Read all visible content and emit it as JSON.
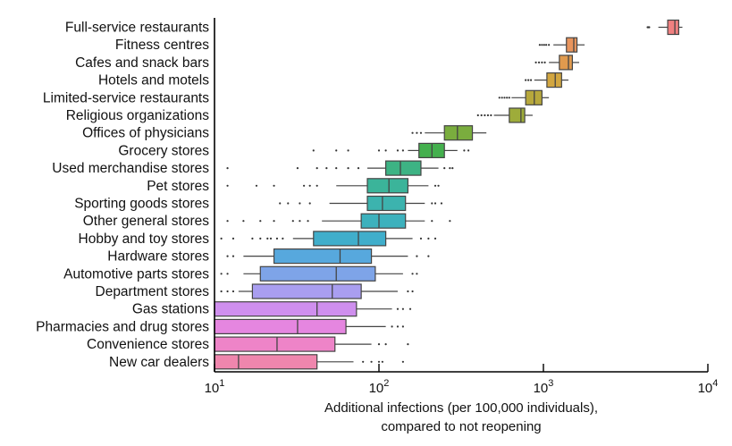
{
  "chart_data": {
    "type": "boxplot",
    "orientation": "horizontal",
    "x_scale": "log",
    "xlim": [
      10,
      10000
    ],
    "x_ticks": [
      {
        "value": 10,
        "base": "10",
        "exp": "1"
      },
      {
        "value": 100,
        "base": "10",
        "exp": "2"
      },
      {
        "value": 1000,
        "base": "10",
        "exp": "3"
      },
      {
        "value": 10000,
        "base": "10",
        "exp": "4"
      }
    ],
    "xlabel_line1": "Additional infections (per 100,000 individuals),",
    "xlabel_line2": "compared to not reopening",
    "grid": false,
    "categories": [
      {
        "label": "Full-service restaurants",
        "color": "#f08080",
        "q1": 5700,
        "median": 6300,
        "q3": 6650,
        "whisker_low": 5000,
        "whisker_high": 7000,
        "outliers": [
          4300,
          4350,
          4400
        ]
      },
      {
        "label": "Fitness centres",
        "color": "#e8945c",
        "q1": 1380,
        "median": 1530,
        "q3": 1600,
        "whisker_low": 1150,
        "whisker_high": 1780,
        "outliers": [
          950,
          980,
          1010,
          1040,
          1080
        ]
      },
      {
        "label": "Cafes and snack bars",
        "color": "#e09a4e",
        "q1": 1250,
        "median": 1420,
        "q3": 1500,
        "whisker_low": 1080,
        "whisker_high": 1650,
        "outliers": [
          900,
          940,
          980,
          1020
        ]
      },
      {
        "label": "Hotels and motels",
        "color": "#d2a640",
        "q1": 1050,
        "median": 1180,
        "q3": 1290,
        "whisker_low": 880,
        "whisker_high": 1420,
        "outliers": [
          780,
          810,
          840
        ]
      },
      {
        "label": "Limited-service restaurants",
        "color": "#b7a83c",
        "q1": 780,
        "median": 880,
        "q3": 980,
        "whisker_low": 640,
        "whisker_high": 1080,
        "outliers": [
          540,
          560,
          580,
          600,
          620
        ]
      },
      {
        "label": "Religious organizations",
        "color": "#9eac3a",
        "q1": 620,
        "median": 730,
        "q3": 770,
        "whisker_low": 500,
        "whisker_high": 860,
        "outliers": [
          400,
          420,
          440,
          460,
          480
        ]
      },
      {
        "label": "Offices of physicians",
        "color": "#7aad3e",
        "q1": 250,
        "median": 300,
        "q3": 370,
        "whisker_low": 190,
        "whisker_high": 450,
        "outliers": [
          160,
          170,
          180
        ]
      },
      {
        "label": "Grocery stores",
        "color": "#44b04e",
        "q1": 175,
        "median": 210,
        "q3": 250,
        "whisker_low": 150,
        "whisker_high": 300,
        "outliers": [
          40,
          55,
          65,
          100,
          110,
          130,
          140,
          330,
          350
        ]
      },
      {
        "label": "Used merchandise stores",
        "color": "#3db384",
        "q1": 110,
        "median": 135,
        "q3": 180,
        "whisker_low": 85,
        "whisker_high": 230,
        "outliers": [
          12,
          32,
          42,
          48,
          55,
          65,
          75,
          250,
          270,
          280
        ]
      },
      {
        "label": "Pet stores",
        "color": "#3bb49a",
        "q1": 85,
        "median": 115,
        "q3": 150,
        "whisker_low": 55,
        "whisker_high": 200,
        "outliers": [
          12,
          18,
          23,
          35,
          38,
          42,
          220,
          230
        ]
      },
      {
        "label": "Sporting goods stores",
        "color": "#3cb3ae",
        "q1": 85,
        "median": 105,
        "q3": 145,
        "whisker_low": 50,
        "whisker_high": 190,
        "outliers": [
          25,
          28,
          33,
          38,
          210,
          220,
          240
        ]
      },
      {
        "label": "Other general stores",
        "color": "#3db1bd",
        "q1": 78,
        "median": 100,
        "q3": 145,
        "whisker_low": 45,
        "whisker_high": 190,
        "outliers": [
          12,
          15,
          19,
          23,
          30,
          33,
          37,
          210,
          270
        ]
      },
      {
        "label": "Hobby and toy stores",
        "color": "#40aecb",
        "q1": 40,
        "median": 75,
        "q3": 110,
        "whisker_low": 30,
        "whisker_high": 160,
        "outliers": [
          11,
          13,
          17,
          19,
          21,
          22,
          24,
          26,
          180,
          200,
          220
        ]
      },
      {
        "label": "Hardware stores",
        "color": "#57a8dd",
        "q1": 23,
        "median": 58,
        "q3": 90,
        "whisker_low": 15,
        "whisker_high": 150,
        "outliers": [
          12,
          13,
          170,
          200
        ]
      },
      {
        "label": "Automotive parts stores",
        "color": "#7ea4e8",
        "q1": 19,
        "median": 55,
        "q3": 95,
        "whisker_low": 15,
        "whisker_high": 140,
        "outliers": [
          11,
          12,
          160,
          170
        ]
      },
      {
        "label": "Department stores",
        "color": "#a99ef0",
        "q1": 17,
        "median": 52,
        "q3": 78,
        "whisker_low": 14,
        "whisker_high": 130,
        "outliers": [
          11,
          12,
          13,
          150,
          160
        ]
      },
      {
        "label": "Gas stations",
        "color": "#cf8fee",
        "q1": 10,
        "median": 42,
        "q3": 73,
        "whisker_low": 10,
        "whisker_high": 120,
        "outliers": [
          130,
          140,
          155
        ]
      },
      {
        "label": "Pharmacies and drug stores",
        "color": "#e586e0",
        "q1": 10,
        "median": 32,
        "q3": 63,
        "whisker_low": 10,
        "whisker_high": 110,
        "outliers": [
          120,
          130,
          140
        ]
      },
      {
        "label": "Convenience stores",
        "color": "#ee84c8",
        "q1": 10,
        "median": 24,
        "q3": 54,
        "whisker_low": 10,
        "whisker_high": 90,
        "outliers": [
          100,
          110,
          150
        ]
      },
      {
        "label": "New car dealers",
        "color": "#ef86ad",
        "q1": 10,
        "median": 14,
        "q3": 42,
        "whisker_low": 10,
        "whisker_high": 70,
        "outliers": [
          80,
          90,
          100,
          105,
          140
        ]
      }
    ]
  }
}
